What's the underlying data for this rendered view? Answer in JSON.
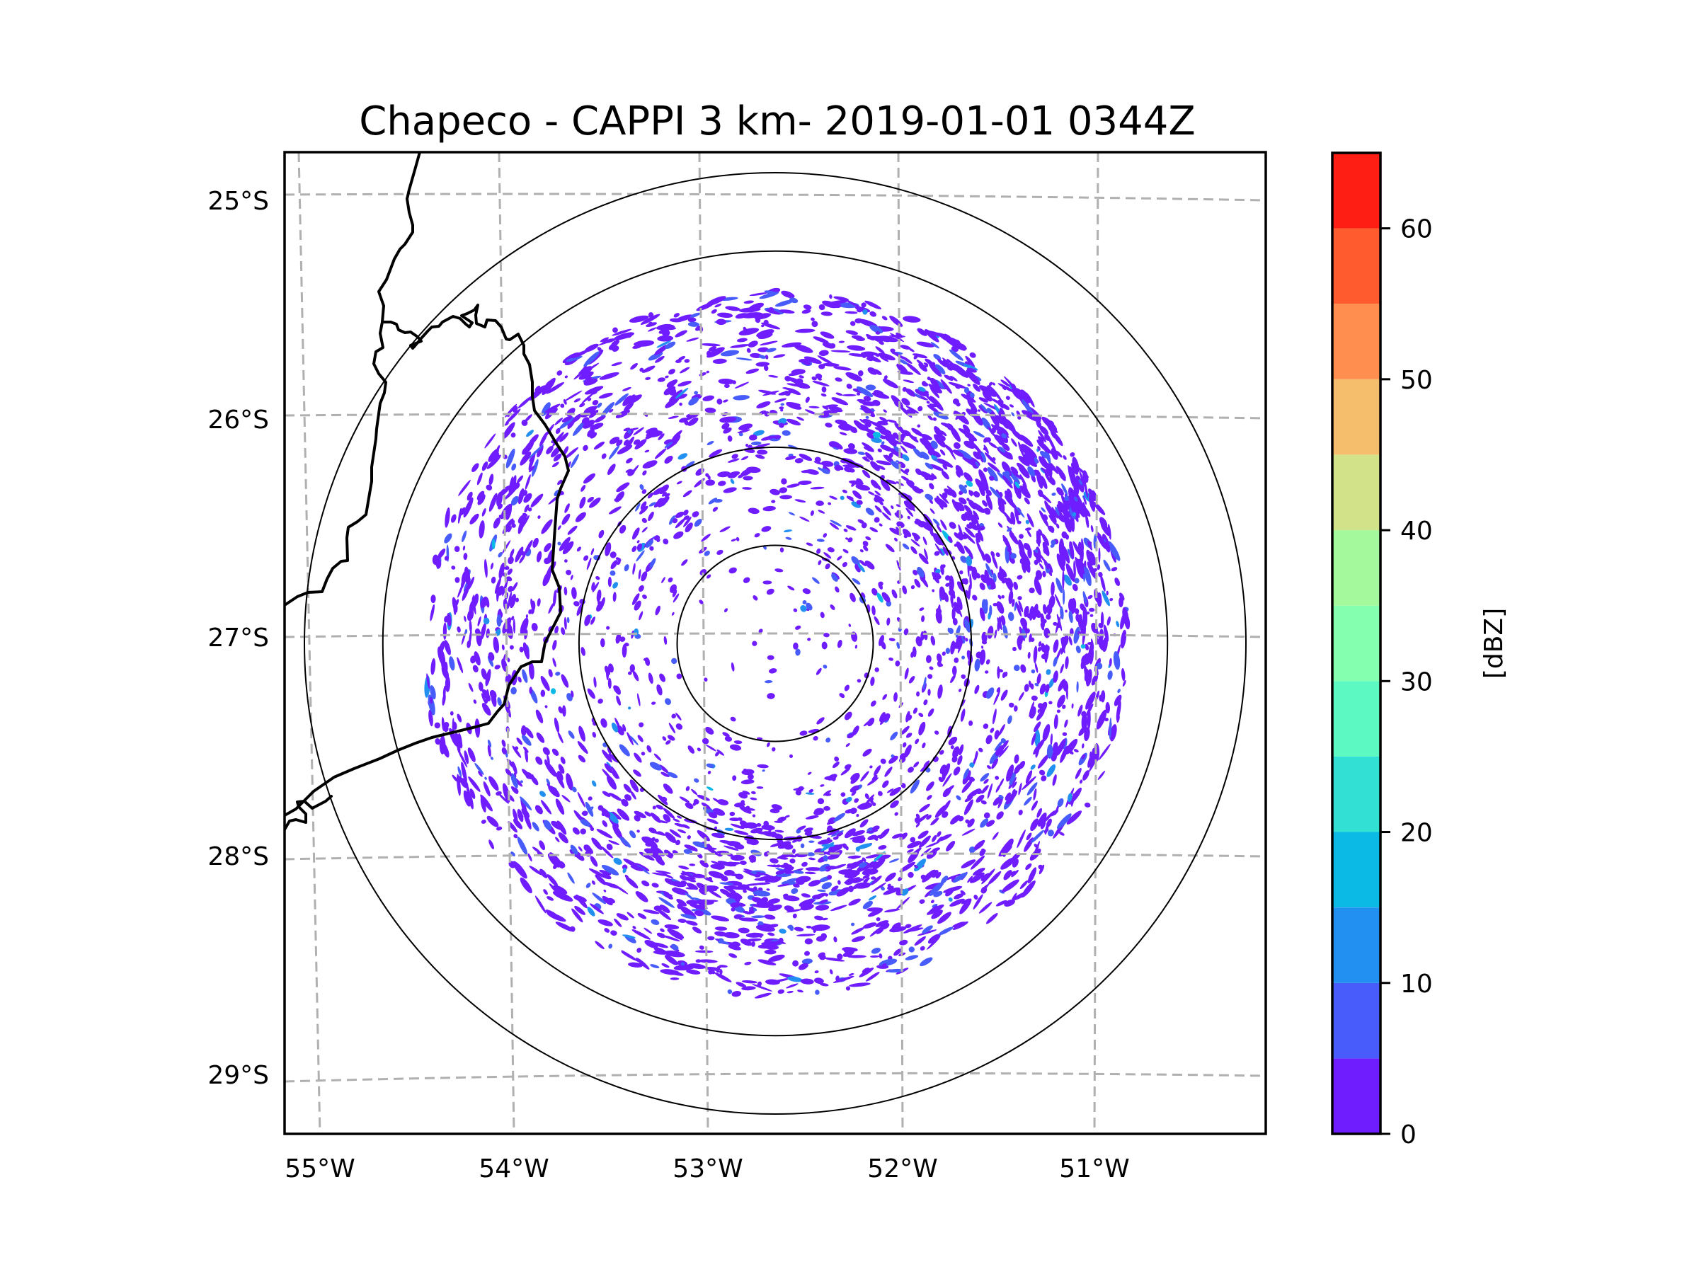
{
  "chart_data": {
    "type": "heatmap",
    "subtype": "radar-ppi-map",
    "title": "Chapeco - CAPPI 3 km- 2019-01-01 0344Z",
    "radar_site": "Chapeco",
    "product": "CAPPI 3 km",
    "datetime": "2019-01-01 0344Z",
    "x_axis": {
      "label": "",
      "ticks": [
        -55,
        -54,
        -53,
        -52,
        -51
      ],
      "tick_labels": [
        "55°W",
        "54°W",
        "53°W",
        "52°W",
        "51°W"
      ],
      "range": [
        -55.2,
        -50.1
      ]
    },
    "y_axis": {
      "label": "",
      "ticks": [
        -25,
        -26,
        -27,
        -28,
        -29
      ],
      "tick_labels": [
        "25°S",
        "26°S",
        "27°S",
        "28°S",
        "29°S"
      ],
      "range": [
        -29.3,
        -24.8
      ]
    },
    "gridlines": {
      "on": true,
      "style": "dashed",
      "color": "#b0b0b0"
    },
    "range_rings_km": [
      50,
      100,
      200,
      240
    ],
    "radar_center": {
      "lat": -27.03,
      "lon": -52.6
    },
    "colorbar": {
      "label": "[dBZ]",
      "min": 0,
      "max": 65,
      "step": 5,
      "ticks": [
        0,
        10,
        20,
        30,
        40,
        50,
        60
      ],
      "tick_labels": [
        "0",
        "10",
        "20",
        "30",
        "40",
        "50",
        "60"
      ],
      "colors": [
        "#6f1cff",
        "#475cfb",
        "#2190f0",
        "#0bbbe6",
        "#33e1d4",
        "#5cf9c2",
        "#84ffb0",
        "#a4f99d",
        "#d1e288",
        "#f4be6d",
        "#ff8e4f",
        "#ff5b2e",
        "#ff1e14"
      ],
      "placement": "right"
    },
    "echo_summary": {
      "dominant_range_dbz": [
        0,
        5
      ],
      "secondary_range_dbz": [
        5,
        10
      ],
      "max_observed_dbz_approx": 20,
      "densest_regions": [
        "northeast quadrant",
        "southern arc near 100 km ring"
      ]
    },
    "map_features": [
      "state/country borders (black)"
    ]
  }
}
